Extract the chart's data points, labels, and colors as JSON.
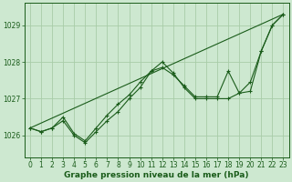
{
  "title": "Graphe pression niveau de la mer (hPa)",
  "bg_color": "#cde8d0",
  "grid_color": "#a8cca8",
  "line_color": "#1a5c1a",
  "marker_color": "#1a5c1a",
  "xlim": [
    -0.5,
    23.5
  ],
  "ylim": [
    1025.4,
    1029.6
  ],
  "yticks": [
    1026,
    1027,
    1028,
    1029
  ],
  "xticks": [
    0,
    1,
    2,
    3,
    4,
    5,
    6,
    7,
    8,
    9,
    10,
    11,
    12,
    13,
    14,
    15,
    16,
    17,
    18,
    19,
    20,
    21,
    22,
    23
  ],
  "series1": [
    1026.2,
    1026.1,
    1026.2,
    1026.4,
    1026.0,
    1025.8,
    1026.1,
    1026.4,
    1026.65,
    1027.0,
    1027.3,
    1027.75,
    1028.0,
    1027.7,
    1027.3,
    1027.0,
    1027.0,
    1027.0,
    1027.0,
    1027.15,
    1027.45,
    1028.3,
    1029.0,
    1029.3
  ],
  "series2": [
    1026.2,
    1026.1,
    1026.2,
    1026.5,
    1026.05,
    1025.85,
    1026.2,
    1026.55,
    1026.85,
    1027.1,
    1027.45,
    1027.75,
    1027.85,
    1027.65,
    1027.35,
    1027.05,
    1027.05,
    1027.05,
    1027.75,
    1027.15,
    1027.2,
    1028.3,
    1029.0,
    1029.3
  ],
  "series3_x": [
    0,
    23
  ],
  "series3_y": [
    1026.2,
    1029.3
  ],
  "tick_fontsize": 5.5,
  "xlabel_fontsize": 6.5
}
